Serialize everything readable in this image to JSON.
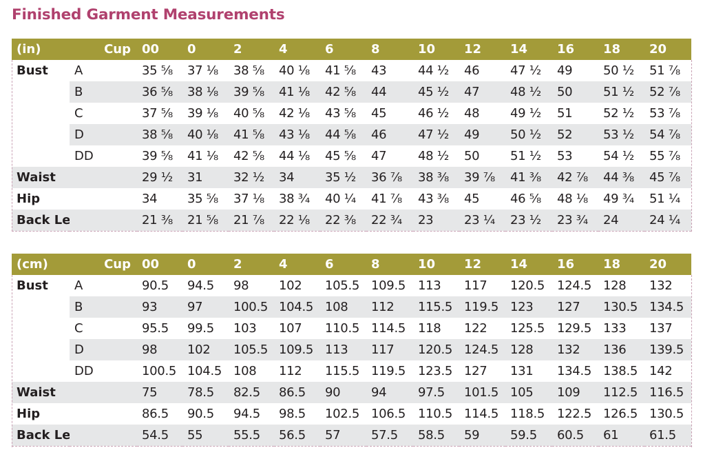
{
  "title": "Finished Garment Measurements",
  "colors": {
    "title": "#b0416e",
    "header_bg": "#a39b39",
    "header_text": "#ffffff",
    "row_shade": "#e6e7e8",
    "dashed_border": "#c9a1b4"
  },
  "inches": {
    "unit_label": "(in)",
    "cup_label": "Cup",
    "sizes": [
      "00",
      "0",
      "2",
      "4",
      "6",
      "8",
      "10",
      "12",
      "14",
      "16",
      "18",
      "20"
    ],
    "rows": [
      {
        "label": "Bust",
        "cup": "A",
        "shaded": false,
        "values": [
          "35 ⅝",
          "37 ⅛",
          "38 ⅝",
          "40 ⅛",
          "41 ⅝",
          "43",
          "44 ½",
          "46",
          "47 ½",
          "49",
          "50 ½",
          "51 ⅞"
        ]
      },
      {
        "label": "",
        "cup": "B",
        "shaded": true,
        "values": [
          "36 ⅝",
          "38 ⅛",
          "39 ⅝",
          "41 ⅛",
          "42 ⅝",
          "44",
          "45 ½",
          "47",
          "48 ½",
          "50",
          "51 ½",
          "52 ⅞"
        ]
      },
      {
        "label": "",
        "cup": "C",
        "shaded": false,
        "values": [
          "37 ⅝",
          "39 ⅛",
          "40 ⅝",
          "42 ⅛",
          "43 ⅝",
          "45",
          "46 ½",
          "48",
          "49 ½",
          "51",
          "52 ½",
          "53 ⅞"
        ]
      },
      {
        "label": "",
        "cup": "D",
        "shaded": true,
        "values": [
          "38 ⅝",
          "40 ⅛",
          "41 ⅝",
          "43 ⅛",
          "44 ⅝",
          "46",
          "47 ½",
          "49",
          "50 ½",
          "52",
          "53 ½",
          "54 ⅞"
        ]
      },
      {
        "label": "",
        "cup": "DD",
        "shaded": false,
        "values": [
          "39 ⅝",
          "41 ⅛",
          "42 ⅝",
          "44 ⅛",
          "45 ⅝",
          "47",
          "48 ½",
          "50",
          "51 ½",
          "53",
          "54 ½",
          "55 ⅞"
        ]
      },
      {
        "label": "Waist",
        "cup": "",
        "shaded": true,
        "values": [
          "29 ½",
          "31",
          "32 ½",
          "34",
          "35 ½",
          "36 ⅞",
          "38 ⅜",
          "39 ⅞",
          "41 ⅜",
          "42 ⅞",
          "44 ⅜",
          "45 ⅞"
        ]
      },
      {
        "label": "Hip",
        "cup": "",
        "shaded": false,
        "values": [
          "34",
          "35 ⅝",
          "37 ⅛",
          "38 ¾",
          "40 ¼",
          "41 ⅞",
          "43 ⅜",
          "45",
          "46 ⅝",
          "48 ⅛",
          "49 ¾",
          "51 ¼"
        ]
      },
      {
        "label": "Back Length",
        "cup": "",
        "shaded": true,
        "values": [
          "21 ⅜",
          "21 ⅝",
          "21 ⅞",
          "22 ⅛",
          "22 ⅜",
          "22 ¾",
          "23",
          "23 ¼",
          "23 ½",
          "23 ¾",
          "24",
          "24 ¼"
        ]
      }
    ]
  },
  "centimeters": {
    "unit_label": "(cm)",
    "cup_label": "Cup",
    "sizes": [
      "00",
      "0",
      "2",
      "4",
      "6",
      "8",
      "10",
      "12",
      "14",
      "16",
      "18",
      "20"
    ],
    "rows": [
      {
        "label": "Bust",
        "cup": "A",
        "shaded": false,
        "values": [
          "90.5",
          "94.5",
          "98",
          "102",
          "105.5",
          "109.5",
          "113",
          "117",
          "120.5",
          "124.5",
          "128",
          "132"
        ]
      },
      {
        "label": "",
        "cup": "B",
        "shaded": true,
        "values": [
          "93",
          "97",
          "100.5",
          "104.5",
          "108",
          "112",
          "115.5",
          "119.5",
          "123",
          "127",
          "130.5",
          "134.5"
        ]
      },
      {
        "label": "",
        "cup": "C",
        "shaded": false,
        "values": [
          "95.5",
          "99.5",
          "103",
          "107",
          "110.5",
          "114.5",
          "118",
          "122",
          "125.5",
          "129.5",
          "133",
          "137"
        ]
      },
      {
        "label": "",
        "cup": "D",
        "shaded": true,
        "values": [
          "98",
          "102",
          "105.5",
          "109.5",
          "113",
          "117",
          "120.5",
          "124.5",
          "128",
          "132",
          "136",
          "139.5"
        ]
      },
      {
        "label": "",
        "cup": "DD",
        "shaded": false,
        "values": [
          "100.5",
          "104.5",
          "108",
          "112",
          "115.5",
          "119.5",
          "123.5",
          "127",
          "131",
          "134.5",
          "138.5",
          "142"
        ]
      },
      {
        "label": "Waist",
        "cup": "",
        "shaded": true,
        "values": [
          "75",
          "78.5",
          "82.5",
          "86.5",
          "90",
          "94",
          "97.5",
          "101.5",
          "105",
          "109",
          "112.5",
          "116.5"
        ]
      },
      {
        "label": "Hip",
        "cup": "",
        "shaded": false,
        "values": [
          "86.5",
          "90.5",
          "94.5",
          "98.5",
          "102.5",
          "106.5",
          "110.5",
          "114.5",
          "118.5",
          "122.5",
          "126.5",
          "130.5"
        ]
      },
      {
        "label": "Back Length",
        "cup": "",
        "shaded": true,
        "values": [
          "54.5",
          "55",
          "55.5",
          "56.5",
          "57",
          "57.5",
          "58.5",
          "59",
          "59.5",
          "60.5",
          "61",
          "61.5"
        ]
      }
    ]
  }
}
